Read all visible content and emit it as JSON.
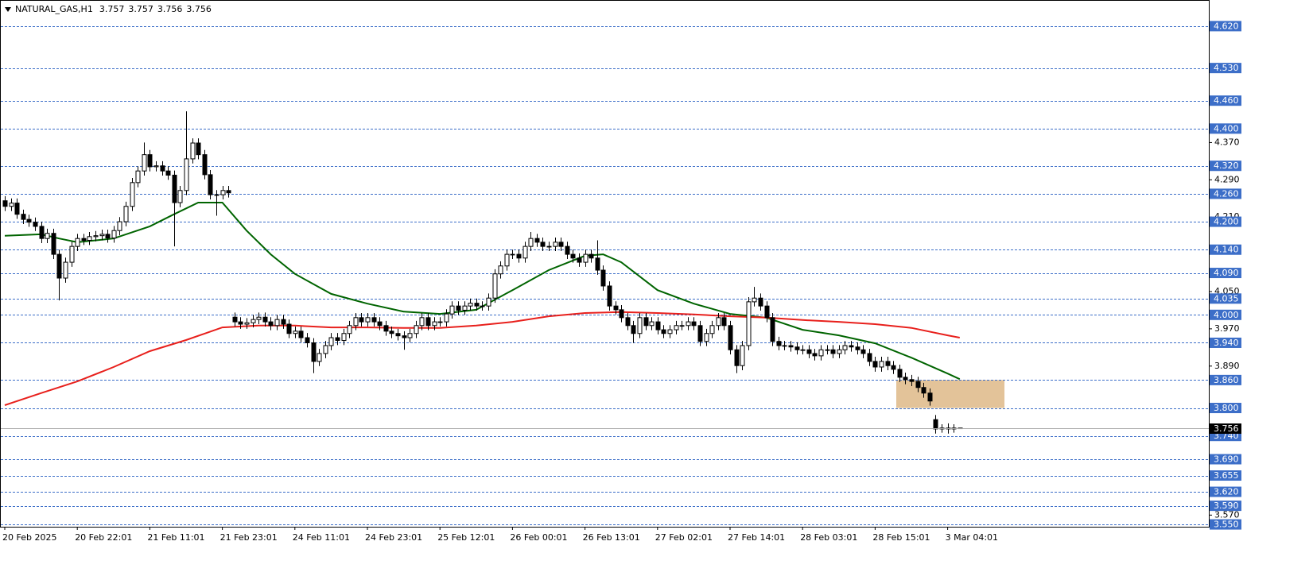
{
  "chart_data": {
    "type": "candlestick",
    "title": "NATURAL_GAS,H1",
    "open": [
      4.245,
      4.233,
      4.24,
      4.216,
      4.205,
      4.199,
      4.19,
      4.164,
      4.175,
      4.13,
      4.079,
      4.113,
      4.147,
      4.164,
      4.16,
      4.168,
      4.17,
      4.173,
      4.165,
      4.181,
      4.2,
      4.233,
      4.284,
      4.309,
      4.344,
      4.318,
      4.32,
      4.309,
      4.3,
      4.241,
      4.267,
      4.335,
      4.369,
      4.344,
      4.301,
      4.258,
      4.258,
      4.267,
      3.995,
      3.985,
      3.98,
      3.983,
      3.99,
      3.995,
      3.985,
      3.977,
      3.99,
      3.98,
      3.96,
      3.965,
      3.951,
      3.94,
      3.9,
      3.917,
      3.934,
      3.951,
      3.945,
      3.96,
      3.977,
      3.994,
      3.985,
      3.994,
      3.985,
      3.977,
      3.965,
      3.96,
      3.955,
      3.951,
      3.96,
      3.977,
      3.994,
      3.977,
      3.985,
      3.985,
      4.002,
      4.019,
      4.01,
      4.019,
      4.025,
      4.019,
      4.019,
      4.036,
      4.088,
      4.105,
      4.13,
      4.13,
      4.122,
      4.147,
      4.164,
      4.156,
      4.147,
      4.147,
      4.156,
      4.147,
      4.13,
      4.122,
      4.113,
      4.13,
      4.122,
      4.096,
      4.062,
      4.019,
      4.011,
      3.994,
      3.977,
      3.96,
      3.994,
      3.977,
      3.985,
      3.968,
      3.96,
      3.968,
      3.977,
      3.977,
      3.985,
      3.977,
      3.943,
      3.96,
      3.977,
      3.994,
      3.977,
      3.925,
      3.891,
      3.934,
      4.028,
      4.036,
      4.019,
      3.994,
      3.943,
      3.934,
      3.934,
      3.931,
      3.925,
      3.925,
      3.917,
      3.912,
      3.925,
      3.925,
      3.917,
      3.925,
      3.934,
      3.931,
      3.925,
      3.917,
      3.9,
      3.888,
      3.9,
      3.891,
      3.883,
      3.866,
      3.861,
      3.857,
      3.844,
      3.832,
      3.775,
      3.755,
      3.757,
      3.755,
      3.757
    ],
    "high": [
      4.255,
      4.25,
      4.25,
      4.226,
      4.215,
      4.209,
      4.2,
      4.185,
      4.185,
      4.14,
      4.123,
      4.157,
      4.174,
      4.174,
      4.178,
      4.18,
      4.183,
      4.183,
      4.191,
      4.21,
      4.243,
      4.294,
      4.319,
      4.37,
      4.354,
      4.33,
      4.33,
      4.319,
      4.31,
      4.277,
      4.437,
      4.379,
      4.379,
      4.354,
      4.311,
      4.268,
      4.277,
      4.277,
      4.005,
      3.995,
      3.993,
      4.0,
      4.005,
      4.005,
      3.995,
      4.0,
      4.0,
      3.99,
      3.975,
      3.975,
      3.961,
      3.95,
      3.927,
      3.944,
      3.961,
      3.961,
      3.97,
      3.987,
      4.004,
      4.004,
      4.004,
      4.004,
      3.995,
      3.987,
      3.975,
      3.97,
      3.965,
      3.97,
      3.987,
      4.004,
      4.004,
      3.995,
      3.995,
      4.012,
      4.029,
      4.029,
      4.029,
      4.035,
      4.035,
      4.029,
      4.046,
      4.098,
      4.115,
      4.14,
      4.14,
      4.14,
      4.157,
      4.178,
      4.174,
      4.166,
      4.157,
      4.166,
      4.166,
      4.157,
      4.14,
      4.132,
      4.14,
      4.14,
      4.16,
      4.106,
      4.072,
      4.029,
      4.021,
      4.004,
      3.987,
      4.004,
      4.004,
      3.995,
      3.995,
      3.978,
      3.978,
      3.987,
      3.987,
      3.995,
      3.995,
      3.987,
      3.97,
      3.987,
      4.004,
      4.004,
      3.987,
      3.935,
      3.944,
      4.038,
      4.06,
      4.046,
      4.029,
      4.004,
      3.953,
      3.944,
      3.944,
      3.941,
      3.935,
      3.935,
      3.927,
      3.935,
      3.935,
      3.935,
      3.935,
      3.944,
      3.944,
      3.941,
      3.935,
      3.927,
      3.91,
      3.91,
      3.91,
      3.901,
      3.893,
      3.876,
      3.871,
      3.867,
      3.854,
      3.842,
      3.785,
      3.765,
      3.767,
      3.765,
      3.757
    ],
    "low": [
      4.223,
      4.223,
      4.206,
      4.195,
      4.189,
      4.18,
      4.154,
      4.154,
      4.12,
      4.031,
      4.069,
      4.103,
      4.137,
      4.15,
      4.15,
      4.158,
      4.16,
      4.155,
      4.155,
      4.171,
      4.19,
      4.223,
      4.274,
      4.299,
      4.308,
      4.308,
      4.299,
      4.29,
      4.147,
      4.231,
      4.257,
      4.325,
      4.334,
      4.291,
      4.248,
      4.213,
      4.248,
      4.252,
      3.975,
      3.97,
      3.97,
      3.973,
      3.98,
      3.975,
      3.967,
      3.967,
      3.97,
      3.95,
      3.95,
      3.941,
      3.93,
      3.875,
      3.89,
      3.907,
      3.924,
      3.935,
      3.935,
      3.95,
      3.967,
      3.975,
      3.975,
      3.975,
      3.967,
      3.955,
      3.95,
      3.945,
      3.925,
      3.941,
      3.95,
      3.967,
      3.967,
      3.967,
      3.975,
      3.975,
      3.992,
      4.0,
      4.0,
      4.009,
      4.009,
      4.009,
      4.009,
      4.026,
      4.078,
      4.095,
      4.12,
      4.112,
      4.112,
      4.137,
      4.146,
      4.137,
      4.137,
      4.137,
      4.137,
      4.12,
      4.112,
      4.103,
      4.103,
      4.112,
      4.086,
      4.052,
      4.009,
      4.001,
      3.984,
      3.967,
      3.94,
      3.95,
      3.967,
      3.967,
      3.958,
      3.95,
      3.95,
      3.958,
      3.967,
      3.967,
      3.967,
      3.933,
      3.933,
      3.95,
      3.967,
      3.967,
      3.915,
      3.875,
      3.881,
      3.924,
      4.018,
      4.009,
      3.984,
      3.933,
      3.924,
      3.924,
      3.921,
      3.915,
      3.915,
      3.907,
      3.902,
      3.902,
      3.915,
      3.907,
      3.907,
      3.915,
      3.921,
      3.915,
      3.907,
      3.89,
      3.878,
      3.878,
      3.881,
      3.873,
      3.856,
      3.851,
      3.847,
      3.834,
      3.822,
      3.805,
      3.745,
      3.747,
      3.745,
      3.747,
      3.756
    ],
    "close": [
      4.233,
      4.24,
      4.216,
      4.205,
      4.199,
      4.19,
      4.164,
      4.175,
      4.13,
      4.079,
      4.113,
      4.147,
      4.164,
      4.16,
      4.168,
      4.17,
      4.173,
      4.165,
      4.181,
      4.2,
      4.233,
      4.284,
      4.309,
      4.344,
      4.318,
      4.32,
      4.309,
      4.3,
      4.241,
      4.267,
      4.335,
      4.369,
      4.344,
      4.301,
      4.258,
      4.258,
      4.267,
      4.262,
      3.985,
      3.98,
      3.983,
      3.99,
      3.995,
      3.985,
      3.977,
      3.99,
      3.98,
      3.96,
      3.965,
      3.951,
      3.94,
      3.9,
      3.917,
      3.934,
      3.951,
      3.945,
      3.96,
      3.977,
      3.994,
      3.985,
      3.994,
      3.985,
      3.977,
      3.965,
      3.96,
      3.955,
      3.951,
      3.96,
      3.977,
      3.994,
      3.977,
      3.985,
      3.985,
      4.002,
      4.019,
      4.01,
      4.019,
      4.025,
      4.019,
      4.019,
      4.036,
      4.088,
      4.105,
      4.13,
      4.13,
      4.122,
      4.147,
      4.164,
      4.156,
      4.147,
      4.147,
      4.156,
      4.147,
      4.13,
      4.122,
      4.113,
      4.13,
      4.122,
      4.096,
      4.062,
      4.019,
      4.011,
      3.994,
      3.977,
      3.96,
      3.994,
      3.977,
      3.985,
      3.968,
      3.96,
      3.968,
      3.977,
      3.977,
      3.985,
      3.977,
      3.943,
      3.96,
      3.977,
      3.994,
      3.977,
      3.925,
      3.891,
      3.934,
      4.028,
      4.036,
      4.019,
      3.994,
      3.943,
      3.934,
      3.934,
      3.931,
      3.925,
      3.925,
      3.917,
      3.912,
      3.925,
      3.925,
      3.917,
      3.925,
      3.934,
      3.931,
      3.925,
      3.917,
      3.9,
      3.888,
      3.9,
      3.891,
      3.883,
      3.866,
      3.861,
      3.857,
      3.844,
      3.832,
      3.815,
      3.755,
      3.757,
      3.755,
      3.757,
      3.756
    ],
    "up_color": "#ffffff",
    "down_color": "#000000",
    "ylim": [
      3.545,
      4.671
    ],
    "yticks": [
      {
        "value": 4.37,
        "label": "4.370"
      },
      {
        "value": 4.29,
        "label": "4.290"
      },
      {
        "value": 4.21,
        "label": "4.210"
      },
      {
        "value": 4.05,
        "label": "4.050"
      },
      {
        "value": 3.97,
        "label": "3.970"
      },
      {
        "value": 3.89,
        "label": "3.890"
      },
      {
        "value": 3.57,
        "label": "3.570"
      }
    ],
    "xticks": [
      {
        "value": 0,
        "label": "20 Feb 2025"
      },
      {
        "value": 12,
        "label": "20 Feb 22:01"
      },
      {
        "value": 24,
        "label": "21 Feb 11:01"
      },
      {
        "value": 36,
        "label": "21 Feb 23:01"
      },
      {
        "value": 48,
        "label": "24 Feb 11:01"
      },
      {
        "value": 60,
        "label": "24 Feb 23:01"
      },
      {
        "value": 72,
        "label": "25 Feb 12:01"
      },
      {
        "value": 84,
        "label": "26 Feb 00:01"
      },
      {
        "value": 96,
        "label": "26 Feb 13:01"
      },
      {
        "value": 108,
        "label": "27 Feb 02:01"
      },
      {
        "value": 120,
        "label": "27 Feb 14:01"
      },
      {
        "value": 132,
        "label": "28 Feb 03:01"
      },
      {
        "value": 144,
        "label": "28 Feb 15:01"
      },
      {
        "value": 156,
        "label": "3 Mar 04:01"
      }
    ],
    "levels": {
      "color": "#3c6ec8",
      "values": [
        {
          "value": 4.62,
          "label": "4.620"
        },
        {
          "value": 4.53,
          "label": "4.530"
        },
        {
          "value": 4.46,
          "label": "4.460"
        },
        {
          "value": 4.4,
          "label": "4.400"
        },
        {
          "value": 4.32,
          "label": "4.320"
        },
        {
          "value": 4.26,
          "label": "4.260"
        },
        {
          "value": 4.2,
          "label": "4.200"
        },
        {
          "value": 4.14,
          "label": "4.140"
        },
        {
          "value": 4.09,
          "label": "4.090"
        },
        {
          "value": 4.035,
          "label": "4.035"
        },
        {
          "value": 4.0,
          "label": "4.000"
        },
        {
          "value": 3.94,
          "label": "3.940"
        },
        {
          "value": 3.86,
          "label": "3.860"
        },
        {
          "value": 3.8,
          "label": "3.800"
        },
        {
          "value": 3.74,
          "label": "3.740"
        },
        {
          "value": 3.69,
          "label": "3.690"
        },
        {
          "value": 3.655,
          "label": "3.655"
        },
        {
          "value": 3.62,
          "label": "3.620"
        },
        {
          "value": 3.59,
          "label": "3.590"
        },
        {
          "value": 3.55,
          "label": "3.550"
        }
      ]
    },
    "overlays": [
      {
        "color": "#006400",
        "x": [
          0,
          6,
          9,
          12,
          18,
          24,
          28,
          32,
          36,
          40,
          44,
          48,
          54,
          60,
          66,
          72,
          78,
          84,
          90,
          96,
          99,
          102,
          108,
          114,
          120,
          126,
          132,
          138,
          144,
          150,
          156,
          158
        ],
        "values": [
          4.17,
          4.173,
          4.164,
          4.156,
          4.164,
          4.19,
          4.216,
          4.241,
          4.241,
          4.181,
          4.13,
          4.088,
          4.045,
          4.024,
          4.007,
          4.002,
          4.011,
          4.053,
          4.096,
          4.127,
          4.13,
          4.113,
          4.053,
          4.024,
          4.002,
          3.994,
          3.968,
          3.956,
          3.939,
          3.908,
          3.874,
          3.862
        ]
      },
      {
        "color": "#e8201c",
        "x": [
          0,
          6,
          12,
          18,
          24,
          30,
          36,
          42,
          48,
          54,
          60,
          66,
          72,
          78,
          84,
          90,
          96,
          102,
          108,
          114,
          120,
          126,
          132,
          138,
          144,
          150,
          156,
          158
        ],
        "values": [
          3.806,
          3.832,
          3.857,
          3.888,
          3.922,
          3.946,
          3.973,
          3.977,
          3.977,
          3.973,
          3.973,
          3.972,
          3.972,
          3.977,
          3.985,
          3.997,
          4.004,
          4.006,
          4.004,
          4.001,
          3.997,
          3.994,
          3.989,
          3.985,
          3.98,
          3.972,
          3.956,
          3.951
        ]
      }
    ],
    "zone": {
      "from": 147.5,
      "to": 165.4,
      "low": 3.8,
      "high": 3.86,
      "color": "#deb887"
    }
  }
}
